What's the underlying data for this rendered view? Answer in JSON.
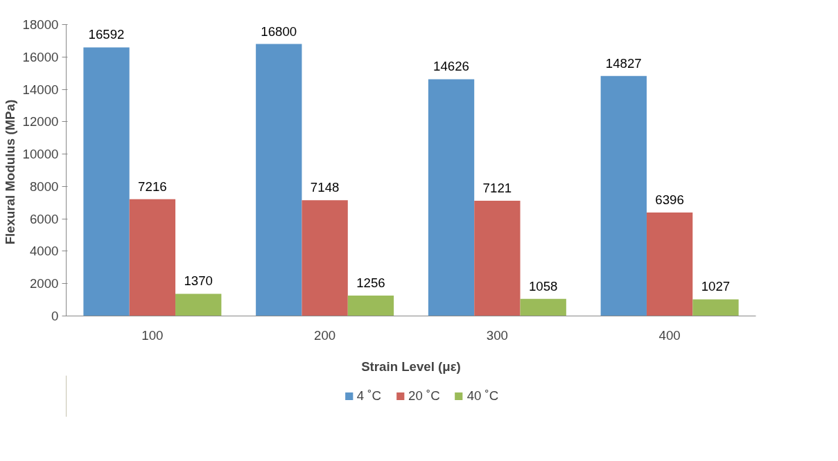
{
  "chart_data": {
    "type": "bar",
    "xlabel": "Strain Level (με)",
    "ylabel": "Flexural Modulus  (MPa)",
    "categories": [
      "100",
      "200",
      "300",
      "400"
    ],
    "series": [
      {
        "name": "4 ˚C",
        "color": "#5b95c9",
        "values": [
          16592,
          16800,
          14626,
          14827
        ]
      },
      {
        "name": "20 ˚C",
        "color": "#cd645c",
        "values": [
          7216,
          7148,
          7121,
          6396
        ]
      },
      {
        "name": "40 ˚C",
        "color": "#9bbb59",
        "values": [
          1370,
          1256,
          1058,
          1027
        ]
      }
    ],
    "ylim": [
      0,
      18000
    ],
    "yticks": [
      0,
      2000,
      4000,
      6000,
      8000,
      10000,
      12000,
      14000,
      16000,
      18000
    ],
    "data_labels": true,
    "legend": "bottom",
    "grid": false
  }
}
